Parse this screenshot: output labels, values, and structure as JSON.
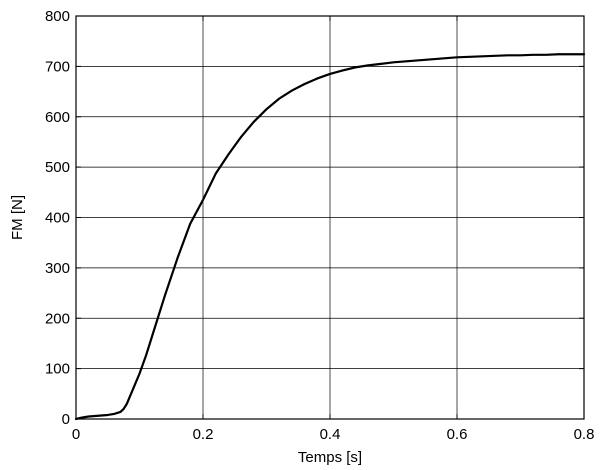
{
  "chart_data": {
    "type": "line",
    "title": "",
    "xlabel": "Temps [s]",
    "ylabel": "FM [N]",
    "xlim": [
      0,
      0.8
    ],
    "ylim": [
      0,
      800
    ],
    "xticks": [
      0,
      0.2,
      0.4,
      0.6,
      0.8
    ],
    "xtick_labels": [
      "0",
      "0.2",
      "0.4",
      "0.6",
      "0.8"
    ],
    "yticks": [
      0,
      100,
      200,
      300,
      400,
      500,
      600,
      700,
      800
    ],
    "ytick_labels": [
      "0",
      "100",
      "200",
      "300",
      "400",
      "500",
      "600",
      "700",
      "800"
    ],
    "grid": true,
    "series": [
      {
        "color": "#000000",
        "x": [
          0,
          0.01,
          0.02,
          0.03,
          0.04,
          0.05,
          0.06,
          0.07,
          0.075,
          0.08,
          0.085,
          0.09,
          0.1,
          0.11,
          0.12,
          0.14,
          0.16,
          0.18,
          0.2,
          0.22,
          0.24,
          0.26,
          0.28,
          0.3,
          0.32,
          0.34,
          0.36,
          0.38,
          0.4,
          0.42,
          0.44,
          0.46,
          0.48,
          0.5,
          0.52,
          0.54,
          0.56,
          0.58,
          0.6,
          0.62,
          0.64,
          0.66,
          0.68,
          0.7,
          0.72,
          0.74,
          0.76,
          0.78,
          0.8
        ],
        "y": [
          0,
          3,
          5,
          6,
          7,
          8,
          10,
          14,
          20,
          30,
          45,
          60,
          90,
          125,
          165,
          245,
          320,
          388,
          435,
          487,
          525,
          560,
          590,
          615,
          636,
          652,
          665,
          676,
          685,
          692,
          698,
          702,
          705,
          708,
          710,
          712,
          714,
          716,
          718,
          719,
          720,
          721,
          722,
          722,
          723,
          723,
          724,
          724,
          724
        ]
      }
    ]
  }
}
